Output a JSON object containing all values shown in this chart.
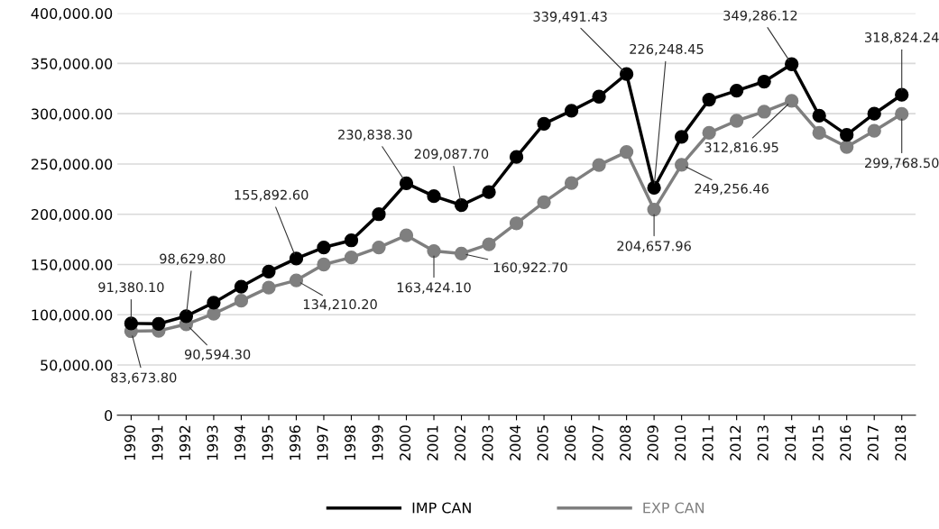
{
  "chart_data": {
    "type": "line",
    "categories": [
      "1990",
      "1991",
      "1992",
      "1993",
      "1994",
      "1995",
      "1996",
      "1997",
      "1998",
      "1999",
      "2000",
      "2001",
      "2002",
      "2003",
      "2004",
      "2005",
      "2006",
      "2007",
      "2008",
      "2009",
      "2010",
      "2011",
      "2012",
      "2013",
      "2014",
      "2015",
      "2016",
      "2017",
      "2018"
    ],
    "series": [
      {
        "name": "IMP CAN",
        "color": "#000000",
        "values": [
          91380.1,
          91000,
          98629.8,
          112000,
          128000,
          143000,
          155892.6,
          167000,
          174000,
          200000,
          230838.3,
          218000,
          209087.7,
          222000,
          257000,
          290000,
          303000,
          317000,
          339491.43,
          226248.45,
          277000,
          314000,
          323000,
          332000,
          349286.12,
          298000,
          279000,
          300000,
          318824.24
        ],
        "value_labels": [
          "91,380.10",
          null,
          "98,629.80",
          null,
          null,
          null,
          "155,892.60",
          null,
          null,
          null,
          "230,838.30",
          null,
          "209,087.70",
          null,
          null,
          null,
          null,
          null,
          "339,491.43",
          "226,248.45",
          null,
          null,
          null,
          null,
          "349,286.12",
          null,
          null,
          null,
          "318,824.24"
        ]
      },
      {
        "name": "EXP CAN",
        "color": "#7f7f7f",
        "values": [
          83673.8,
          84000,
          90594.3,
          101000,
          114000,
          127000,
          134210.2,
          150000,
          157000,
          167000,
          179000,
          163424.1,
          160922.7,
          170000,
          191000,
          212000,
          231000,
          249000,
          262000,
          204657.96,
          249256.46,
          281000,
          293000,
          302000,
          312816.95,
          281000,
          267000,
          283000,
          299768.5
        ],
        "value_labels": [
          "83,673.80",
          null,
          "90,594.30",
          null,
          null,
          null,
          "134,210.20",
          null,
          null,
          null,
          null,
          "163,424.10",
          "160,922.70",
          null,
          null,
          null,
          null,
          null,
          null,
          "204,657.96",
          "249,256.46",
          null,
          null,
          null,
          "312,816.95",
          null,
          null,
          null,
          "299,768.50"
        ]
      }
    ],
    "ylim": [
      0,
      400000
    ],
    "yticks": [
      {
        "value": 0,
        "label": "0"
      },
      {
        "value": 50000,
        "label": "50,000.00"
      },
      {
        "value": 100000,
        "label": "100,000.00"
      },
      {
        "value": 150000,
        "label": "150,000.00"
      },
      {
        "value": 200000,
        "label": "200,000.00"
      },
      {
        "value": 250000,
        "label": "250,000.00"
      },
      {
        "value": 300000,
        "label": "300,000.00"
      },
      {
        "value": 350000,
        "label": "350,000.00"
      },
      {
        "value": 400000,
        "label": "400,000.00"
      }
    ],
    "grid": "y",
    "legend": "bottom",
    "marker": "circle",
    "line_style": "solid"
  }
}
